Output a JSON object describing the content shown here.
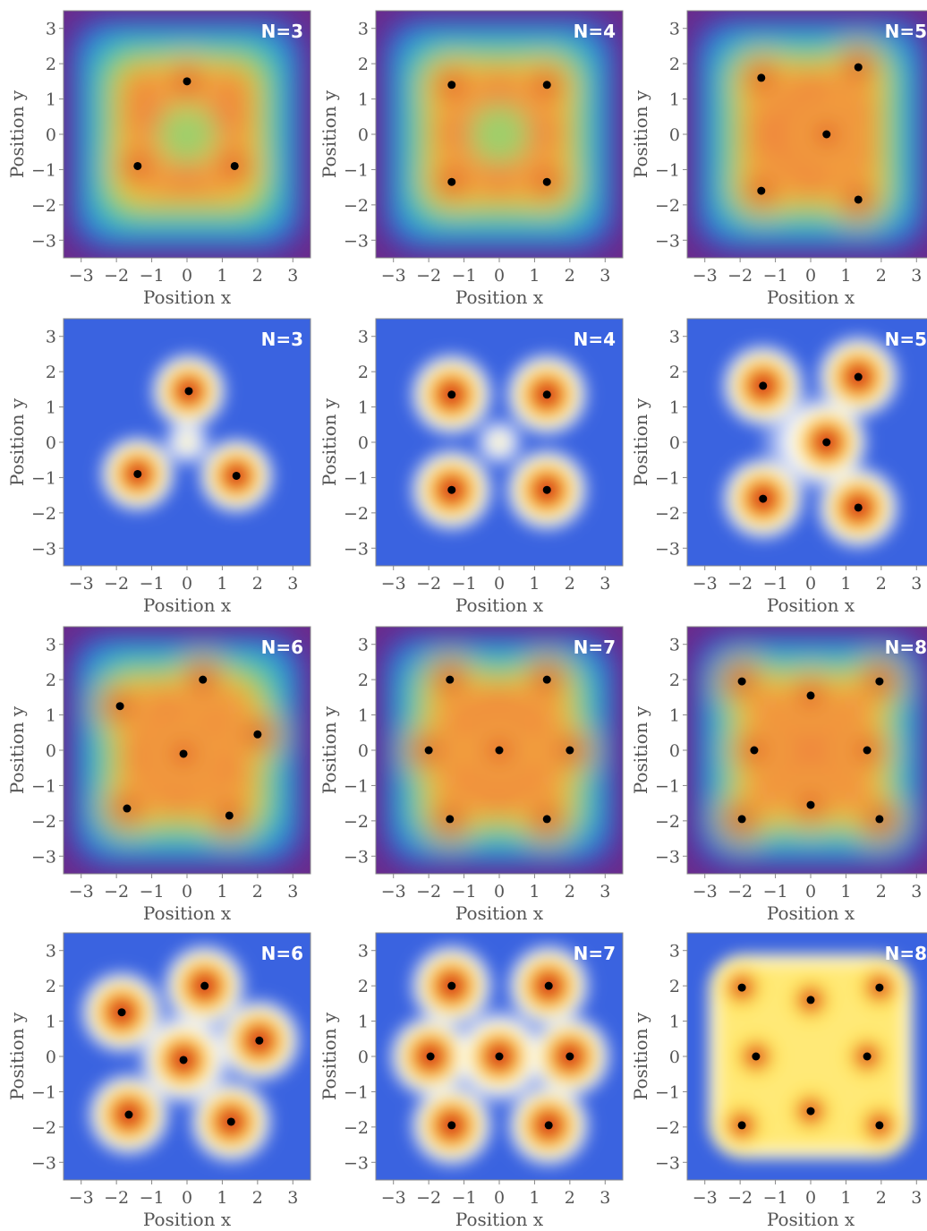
{
  "chart_data": [
    {
      "type": "heatmap",
      "colormap": "rainbow",
      "label": "N=3",
      "xlabel": "Position x",
      "ylabel": "Position y",
      "xlim": [
        -3.5,
        3.5
      ],
      "ylim": [
        -3.5,
        3.5
      ],
      "ticks": [
        -3,
        -2,
        -1,
        0,
        1,
        2,
        3
      ],
      "points": [
        [
          0,
          1.5
        ],
        [
          -1.4,
          -0.9
        ],
        [
          1.35,
          -0.9
        ]
      ]
    },
    {
      "type": "heatmap",
      "colormap": "rainbow",
      "label": "N=4",
      "xlabel": "Position x",
      "ylabel": "Position y",
      "xlim": [
        -3.5,
        3.5
      ],
      "ylim": [
        -3.5,
        3.5
      ],
      "ticks": [
        -3,
        -2,
        -1,
        0,
        1,
        2,
        3
      ],
      "points": [
        [
          -1.35,
          1.4
        ],
        [
          1.35,
          1.4
        ],
        [
          -1.35,
          -1.35
        ],
        [
          1.35,
          -1.35
        ]
      ]
    },
    {
      "type": "heatmap",
      "colormap": "rainbow",
      "label": "N=5",
      "xlabel": "Position x",
      "ylabel": "Position y",
      "xlim": [
        -3.5,
        3.5
      ],
      "ylim": [
        -3.5,
        3.5
      ],
      "ticks": [
        -3,
        -2,
        -1,
        0,
        1,
        2,
        3
      ],
      "points": [
        [
          -1.4,
          1.6
        ],
        [
          1.35,
          1.9
        ],
        [
          0.45,
          0.0
        ],
        [
          -1.4,
          -1.6
        ],
        [
          1.35,
          -1.85
        ]
      ]
    },
    {
      "type": "heatmap",
      "colormap": "blue-white-yellow-red",
      "label": "N=3",
      "xlabel": "Position x",
      "ylabel": "Position y",
      "xlim": [
        -3.5,
        3.5
      ],
      "ylim": [
        -3.5,
        3.5
      ],
      "ticks": [
        -3,
        -2,
        -1,
        0,
        1,
        2,
        3
      ],
      "points": [
        [
          0.05,
          1.45
        ],
        [
          -1.4,
          -0.9
        ],
        [
          1.4,
          -0.95
        ]
      ]
    },
    {
      "type": "heatmap",
      "colormap": "blue-white-yellow-red",
      "label": "N=4",
      "xlabel": "Position x",
      "ylabel": "Position y",
      "xlim": [
        -3.5,
        3.5
      ],
      "ylim": [
        -3.5,
        3.5
      ],
      "ticks": [
        -3,
        -2,
        -1,
        0,
        1,
        2,
        3
      ],
      "points": [
        [
          -1.35,
          1.35
        ],
        [
          1.35,
          1.35
        ],
        [
          -1.35,
          -1.35
        ],
        [
          1.35,
          -1.35
        ]
      ]
    },
    {
      "type": "heatmap",
      "colormap": "blue-white-yellow-red",
      "label": "N=5",
      "xlabel": "Position x",
      "ylabel": "Position y",
      "xlim": [
        -3.5,
        3.5
      ],
      "ylim": [
        -3.5,
        3.5
      ],
      "ticks": [
        -3,
        -2,
        -1,
        0,
        1,
        2,
        3
      ],
      "points": [
        [
          -1.35,
          1.6
        ],
        [
          1.35,
          1.85
        ],
        [
          0.45,
          0.0
        ],
        [
          -1.35,
          -1.6
        ],
        [
          1.35,
          -1.85
        ]
      ]
    },
    {
      "type": "heatmap",
      "colormap": "rainbow",
      "label": "N=6",
      "xlabel": "Position x",
      "ylabel": "Position y",
      "xlim": [
        -3.5,
        3.5
      ],
      "ylim": [
        -3.5,
        3.5
      ],
      "ticks": [
        -3,
        -2,
        -1,
        0,
        1,
        2,
        3
      ],
      "points": [
        [
          0.45,
          2.0
        ],
        [
          -1.9,
          1.25
        ],
        [
          2.0,
          0.45
        ],
        [
          -0.1,
          -0.1
        ],
        [
          -1.7,
          -1.65
        ],
        [
          1.2,
          -1.85
        ]
      ]
    },
    {
      "type": "heatmap",
      "colormap": "rainbow",
      "label": "N=7",
      "xlabel": "Position x",
      "ylabel": "Position y",
      "xlim": [
        -3.5,
        3.5
      ],
      "ylim": [
        -3.5,
        3.5
      ],
      "ticks": [
        -3,
        -2,
        -1,
        0,
        1,
        2,
        3
      ],
      "points": [
        [
          -1.4,
          2.0
        ],
        [
          1.35,
          2.0
        ],
        [
          -2.0,
          0.0
        ],
        [
          0.0,
          0.0
        ],
        [
          2.0,
          0.0
        ],
        [
          -1.4,
          -1.95
        ],
        [
          1.35,
          -1.95
        ]
      ]
    },
    {
      "type": "heatmap",
      "colormap": "rainbow",
      "label": "N=8",
      "xlabel": "Position x",
      "ylabel": "Position y",
      "xlim": [
        -3.5,
        3.5
      ],
      "ylim": [
        -3.5,
        3.5
      ],
      "ticks": [
        -3,
        -2,
        -1,
        0,
        1,
        2,
        3
      ],
      "points": [
        [
          -1.95,
          1.95
        ],
        [
          0.0,
          1.55
        ],
        [
          1.95,
          1.95
        ],
        [
          -1.6,
          0.0
        ],
        [
          1.6,
          0.0
        ],
        [
          -1.95,
          -1.95
        ],
        [
          0.0,
          -1.55
        ],
        [
          1.95,
          -1.95
        ]
      ]
    },
    {
      "type": "heatmap",
      "colormap": "blue-white-yellow-red",
      "label": "N=6",
      "xlabel": "Position x",
      "ylabel": "Position y",
      "xlim": [
        -3.5,
        3.5
      ],
      "ylim": [
        -3.5,
        3.5
      ],
      "ticks": [
        -3,
        -2,
        -1,
        0,
        1,
        2,
        3
      ],
      "points": [
        [
          0.5,
          2.0
        ],
        [
          -1.85,
          1.25
        ],
        [
          2.05,
          0.45
        ],
        [
          -0.1,
          -0.1
        ],
        [
          -1.65,
          -1.65
        ],
        [
          1.25,
          -1.85
        ]
      ]
    },
    {
      "type": "heatmap",
      "colormap": "blue-white-yellow-red",
      "label": "N=7",
      "xlabel": "Position x",
      "ylabel": "Position y",
      "xlim": [
        -3.5,
        3.5
      ],
      "ylim": [
        -3.5,
        3.5
      ],
      "ticks": [
        -3,
        -2,
        -1,
        0,
        1,
        2,
        3
      ],
      "points": [
        [
          -1.35,
          2.0
        ],
        [
          1.4,
          2.0
        ],
        [
          -1.95,
          0.0
        ],
        [
          0.0,
          0.0
        ],
        [
          2.0,
          0.0
        ],
        [
          -1.35,
          -1.95
        ],
        [
          1.4,
          -1.95
        ]
      ]
    },
    {
      "type": "heatmap",
      "colormap": "blue-white-yellow-red",
      "label": "N=8",
      "xlabel": "Position x",
      "ylabel": "Position y",
      "xlim": [
        -3.5,
        3.5
      ],
      "ylim": [
        -3.5,
        3.5
      ],
      "ticks": [
        -3,
        -2,
        -1,
        0,
        1,
        2,
        3
      ],
      "points": [
        [
          -1.95,
          1.95
        ],
        [
          0.0,
          1.6
        ],
        [
          1.95,
          1.95
        ],
        [
          -1.55,
          0.0
        ],
        [
          1.6,
          0.0
        ],
        [
          -1.95,
          -1.95
        ],
        [
          0.0,
          -1.55
        ],
        [
          1.95,
          -1.95
        ]
      ]
    }
  ]
}
